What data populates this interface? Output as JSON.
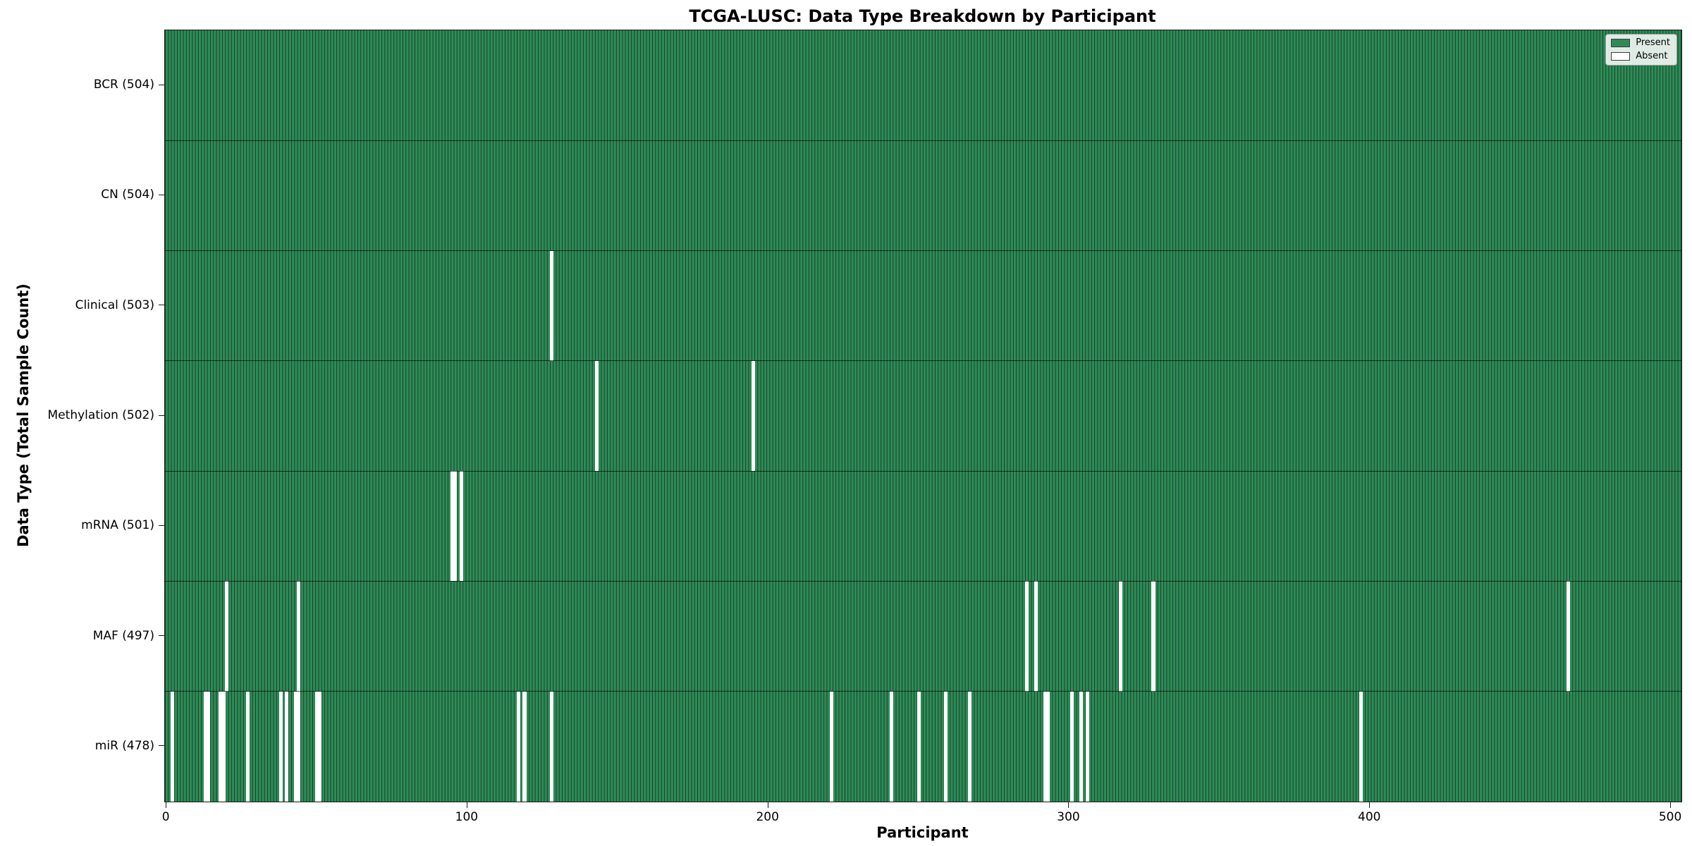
{
  "title": "TCGA-LUSC: Data Type Breakdown by Participant",
  "xlabel": "Participant",
  "ylabel": "Data Type (Total Sample Count)",
  "colors": {
    "present": "#2e8b57",
    "absent": "#ffffff",
    "bar_edge": "rgba(0,0,0,0.55)",
    "row_divider": "rgba(0,0,0,0.65)",
    "axis": "#1a1a1a"
  },
  "legend": {
    "items": [
      {
        "label": "Present",
        "color": "#2e8b57"
      },
      {
        "label": "Absent",
        "color": "#ffffff"
      }
    ]
  },
  "chart_data": {
    "type": "heatmap",
    "title": "TCGA-LUSC: Data Type Breakdown by Participant",
    "xlabel": "Participant",
    "ylabel": "Data Type (Total Sample Count)",
    "legend_position": "upper right",
    "n_participants": 504,
    "x_ticks": [
      0,
      100,
      200,
      300,
      400,
      500
    ],
    "x_range": [
      -0.5,
      503.5
    ],
    "value_encoding": {
      "present": "#2e8b57",
      "absent": "#ffffff"
    },
    "rows": [
      {
        "label": "BCR",
        "total": 504,
        "display": "BCR (504)",
        "absent_participants": []
      },
      {
        "label": "CN",
        "total": 504,
        "display": "CN (504)",
        "absent_participants": []
      },
      {
        "label": "Clinical",
        "total": 503,
        "display": "Clinical (503)",
        "absent_participants": [
          128
        ]
      },
      {
        "label": "Methylation",
        "total": 502,
        "display": "Methylation (502)",
        "absent_participants": [
          143,
          195
        ]
      },
      {
        "label": "mRNA",
        "total": 501,
        "display": "mRNA (501)",
        "absent_participants": [
          95,
          96,
          98
        ]
      },
      {
        "label": "MAF",
        "total": 497,
        "display": "MAF (497)",
        "absent_participants": [
          20,
          44,
          286,
          289,
          317,
          328,
          466
        ]
      },
      {
        "label": "miR",
        "total": 478,
        "display": "miR (478)",
        "absent_participants": [
          2,
          13,
          14,
          18,
          19,
          27,
          38,
          40,
          43,
          44,
          50,
          51,
          117,
          119,
          128,
          221,
          241,
          250,
          259,
          267,
          292,
          293,
          301,
          304,
          306,
          397
        ]
      }
    ]
  }
}
